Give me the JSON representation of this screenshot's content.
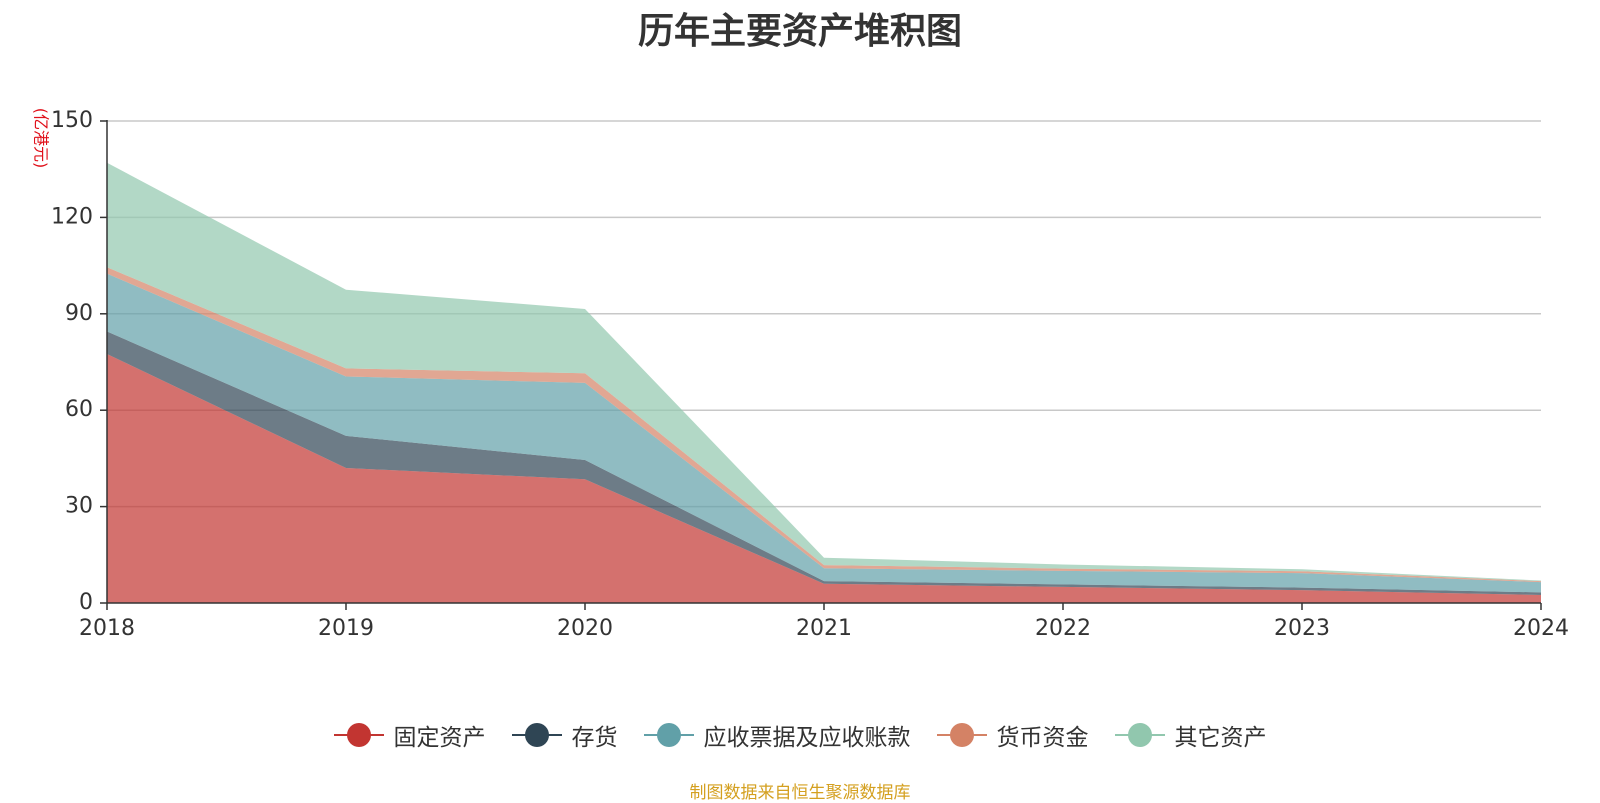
{
  "title": "历年主要资产堆积图",
  "footer": {
    "text": "制图数据来自恒生聚源数据库",
    "color": "#d4a020"
  },
  "chart_data": {
    "type": "area",
    "stacked": true,
    "title": "历年主要资产堆积图",
    "y_unit": "(亿港元)",
    "y_unit_color": "#e0101a",
    "categories": [
      "2018",
      "2019",
      "2020",
      "2021",
      "2022",
      "2023",
      "2024"
    ],
    "ylim": [
      0,
      150
    ],
    "y_ticks": [
      0,
      30,
      60,
      90,
      120,
      150
    ],
    "grid": true,
    "legend_position": "bottom",
    "series": [
      {
        "name": "固定资产",
        "color": "#c23531",
        "values": [
          77.5,
          42,
          38.5,
          6,
          5,
          4,
          2.5
        ]
      },
      {
        "name": "存货",
        "color": "#2f4554",
        "values": [
          7,
          10,
          6,
          0.8,
          0.8,
          0.8,
          0.8
        ]
      },
      {
        "name": "应收票据及应收账款",
        "color": "#61a0a8",
        "values": [
          18,
          18.5,
          24,
          4,
          4.2,
          4.5,
          3.2
        ]
      },
      {
        "name": "货币资金",
        "color": "#d48265",
        "values": [
          2,
          2.5,
          3,
          1,
          0.7,
          0.6,
          0.3
        ]
      },
      {
        "name": "其它资产",
        "color": "#91c7ae",
        "values": [
          32.5,
          24.5,
          20,
          2.3,
          1.3,
          0.6,
          0.2
        ]
      }
    ]
  }
}
